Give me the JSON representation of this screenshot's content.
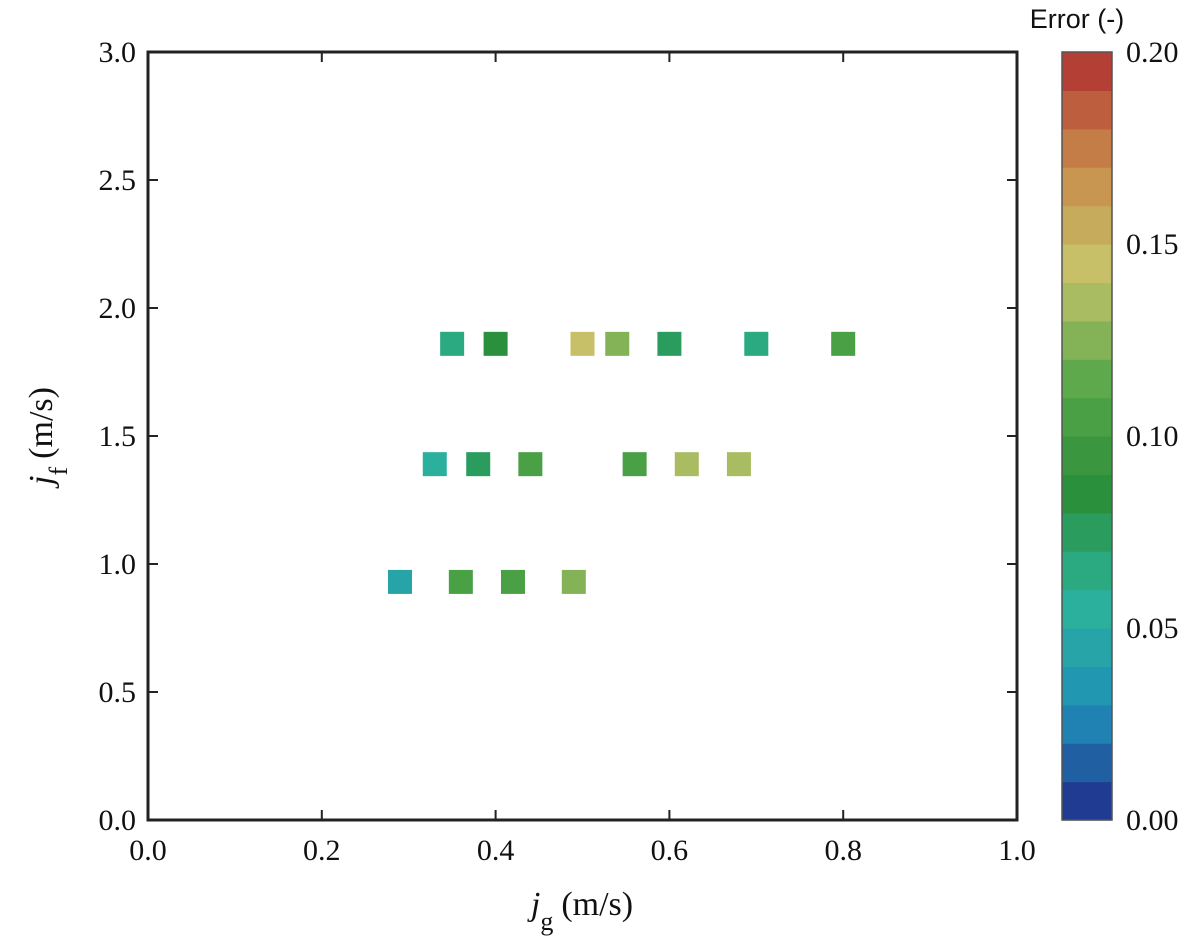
{
  "chart_data": {
    "type": "scatter",
    "marker": "square",
    "xlabel": {
      "main": "j",
      "sub": "g",
      "unit": "(m/s)"
    },
    "ylabel": {
      "main": "j",
      "sub": "f",
      "unit": "(m/s)"
    },
    "xlim": [
      0.0,
      1.0
    ],
    "ylim": [
      0.0,
      3.0
    ],
    "xticks": [
      "0.0",
      "0.2",
      "0.4",
      "0.6",
      "0.8",
      "1.0"
    ],
    "yticks": [
      "0.0",
      "0.5",
      "1.0",
      "1.5",
      "2.0",
      "2.5",
      "3.0"
    ],
    "grid": false,
    "colorbar": {
      "title": "Error (-)",
      "range": [
        0.0,
        0.2
      ],
      "ticks": [
        "0.00",
        "0.05",
        "0.10",
        "0.15",
        "0.20"
      ],
      "levels": 20,
      "colormap": [
        "#1f2a8a",
        "#1f8fb8",
        "#2bb39a",
        "#2a8f3a",
        "#5aa84a",
        "#c7c46a",
        "#c8884a",
        "#b03030"
      ]
    },
    "points": [
      {
        "x": 0.29,
        "y": 0.93,
        "error": 0.045
      },
      {
        "x": 0.36,
        "y": 0.93,
        "error": 0.105
      },
      {
        "x": 0.42,
        "y": 0.93,
        "error": 0.1
      },
      {
        "x": 0.49,
        "y": 0.93,
        "error": 0.125
      },
      {
        "x": 0.33,
        "y": 1.39,
        "error": 0.055
      },
      {
        "x": 0.38,
        "y": 1.39,
        "error": 0.075
      },
      {
        "x": 0.44,
        "y": 1.39,
        "error": 0.1
      },
      {
        "x": 0.56,
        "y": 1.39,
        "error": 0.1
      },
      {
        "x": 0.62,
        "y": 1.39,
        "error": 0.13
      },
      {
        "x": 0.68,
        "y": 1.39,
        "error": 0.13
      },
      {
        "x": 0.35,
        "y": 1.86,
        "error": 0.06
      },
      {
        "x": 0.4,
        "y": 1.86,
        "error": 0.085
      },
      {
        "x": 0.5,
        "y": 1.86,
        "error": 0.15
      },
      {
        "x": 0.54,
        "y": 1.86,
        "error": 0.125
      },
      {
        "x": 0.6,
        "y": 1.86,
        "error": 0.07
      },
      {
        "x": 0.7,
        "y": 1.86,
        "error": 0.06
      },
      {
        "x": 0.8,
        "y": 1.86,
        "error": 0.1
      }
    ]
  }
}
